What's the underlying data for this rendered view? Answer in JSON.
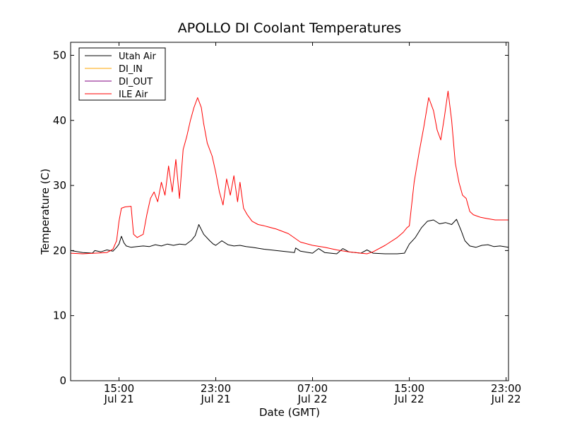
{
  "chart_data": {
    "type": "line",
    "title": "APOLLO DI Coolant Temperatures",
    "xlabel": "Date (GMT)",
    "ylabel": "Temperature (C)",
    "x_unit": "hours since Jul 21 00:00 GMT",
    "xlim": [
      11,
      47.2
    ],
    "ylim": [
      0,
      52
    ],
    "yticks": [
      0,
      10,
      20,
      30,
      40,
      50
    ],
    "xticks": [
      {
        "x": 15,
        "line1": "15:00",
        "line2": "Jul 21"
      },
      {
        "x": 23,
        "line1": "23:00",
        "line2": "Jul 21"
      },
      {
        "x": 31,
        "line1": "07:00",
        "line2": "Jul 22"
      },
      {
        "x": 39,
        "line1": "15:00",
        "line2": "Jul 22"
      },
      {
        "x": 47,
        "line1": "23:00",
        "line2": "Jul 22"
      }
    ],
    "legend_position": "top-left",
    "series": [
      {
        "name": "Utah Air",
        "color": "#000000",
        "x": [
          11.0,
          12.0,
          12.8,
          13.0,
          13.5,
          14.0,
          14.5,
          14.8,
          15.0,
          15.2,
          15.4,
          15.6,
          16.0,
          16.5,
          17.0,
          17.5,
          18.0,
          18.5,
          19.0,
          19.5,
          20.0,
          20.5,
          21.0,
          21.3,
          21.6,
          22.0,
          22.5,
          22.8,
          23.0,
          23.5,
          24.0,
          24.5,
          25.0,
          25.5,
          26.0,
          27.0,
          28.0,
          29.0,
          29.5,
          29.6,
          30.0,
          31.0,
          31.5,
          32.0,
          33.0,
          33.5,
          34.0,
          35.0,
          35.5,
          36.0,
          37.0,
          38.0,
          38.6,
          39.0,
          39.5,
          40.0,
          40.5,
          41.0,
          41.5,
          42.0,
          42.5,
          42.9,
          43.3,
          43.6,
          44.0,
          44.5,
          45.0,
          45.5,
          46.0,
          46.5,
          47.2
        ],
        "y": [
          20.0,
          19.7,
          19.6,
          20.0,
          19.8,
          20.1,
          19.9,
          20.5,
          21.0,
          22.2,
          21.2,
          20.7,
          20.5,
          20.6,
          20.7,
          20.6,
          20.9,
          20.7,
          21.0,
          20.8,
          21.0,
          20.9,
          21.6,
          22.3,
          24.0,
          22.5,
          21.5,
          21.0,
          20.8,
          21.5,
          20.9,
          20.7,
          20.8,
          20.6,
          20.5,
          20.2,
          20.0,
          19.8,
          19.7,
          20.4,
          19.9,
          19.6,
          20.3,
          19.7,
          19.5,
          20.3,
          19.8,
          19.6,
          20.1,
          19.6,
          19.5,
          19.5,
          19.6,
          21.0,
          22.0,
          23.5,
          24.5,
          24.7,
          24.1,
          24.3,
          24.0,
          24.8,
          23.0,
          21.5,
          20.7,
          20.5,
          20.8,
          20.9,
          20.6,
          20.7,
          20.5
        ]
      },
      {
        "name": "DI_IN",
        "color": "#ffa500",
        "x": [],
        "y": []
      },
      {
        "name": "DI_OUT",
        "color": "#800080",
        "x": [],
        "y": []
      },
      {
        "name": "ILE Air",
        "color": "#ff0000",
        "x": [
          11.0,
          12.0,
          13.0,
          14.0,
          14.5,
          14.8,
          15.0,
          15.2,
          15.5,
          16.0,
          16.2,
          16.5,
          17.0,
          17.3,
          17.6,
          17.9,
          18.2,
          18.5,
          18.8,
          19.1,
          19.4,
          19.7,
          20.0,
          20.3,
          20.6,
          20.9,
          21.2,
          21.5,
          21.8,
          22.0,
          22.3,
          22.7,
          23.0,
          23.3,
          23.6,
          23.9,
          24.2,
          24.5,
          24.8,
          25.0,
          25.3,
          25.6,
          26.0,
          26.5,
          27.0,
          28.0,
          29.0,
          30.0,
          31.0,
          32.0,
          33.0,
          34.0,
          35.0,
          35.5,
          36.0,
          37.0,
          38.0,
          38.5,
          38.8,
          39.0,
          39.4,
          39.8,
          40.2,
          40.6,
          41.0,
          41.3,
          41.6,
          41.9,
          42.2,
          42.5,
          42.8,
          43.1,
          43.4,
          43.7,
          44.0,
          44.3,
          44.6,
          44.9,
          45.2,
          45.5,
          45.8,
          46.1,
          46.5,
          47.2
        ],
        "y": [
          19.6,
          19.5,
          19.6,
          19.7,
          20.2,
          21.5,
          24.5,
          26.5,
          26.7,
          26.8,
          22.5,
          22.0,
          22.5,
          25.5,
          28.0,
          29.0,
          27.5,
          30.5,
          28.5,
          33.0,
          29.0,
          34.0,
          28.0,
          35.5,
          37.5,
          40.0,
          42.0,
          43.5,
          42.0,
          39.5,
          36.5,
          34.5,
          32.0,
          29.0,
          27.0,
          31.0,
          28.5,
          31.5,
          27.5,
          30.5,
          26.5,
          25.5,
          24.5,
          24.0,
          23.8,
          23.3,
          22.6,
          21.3,
          20.8,
          20.5,
          20.1,
          19.8,
          19.6,
          19.5,
          19.8,
          20.8,
          22.0,
          22.8,
          23.5,
          23.8,
          30.5,
          35.0,
          39.0,
          43.5,
          41.5,
          38.5,
          37.0,
          40.5,
          44.5,
          40.0,
          33.5,
          30.5,
          28.5,
          28.0,
          26.0,
          25.5,
          25.3,
          25.1,
          25.0,
          24.9,
          24.8,
          24.7,
          24.7,
          24.7
        ]
      }
    ]
  }
}
